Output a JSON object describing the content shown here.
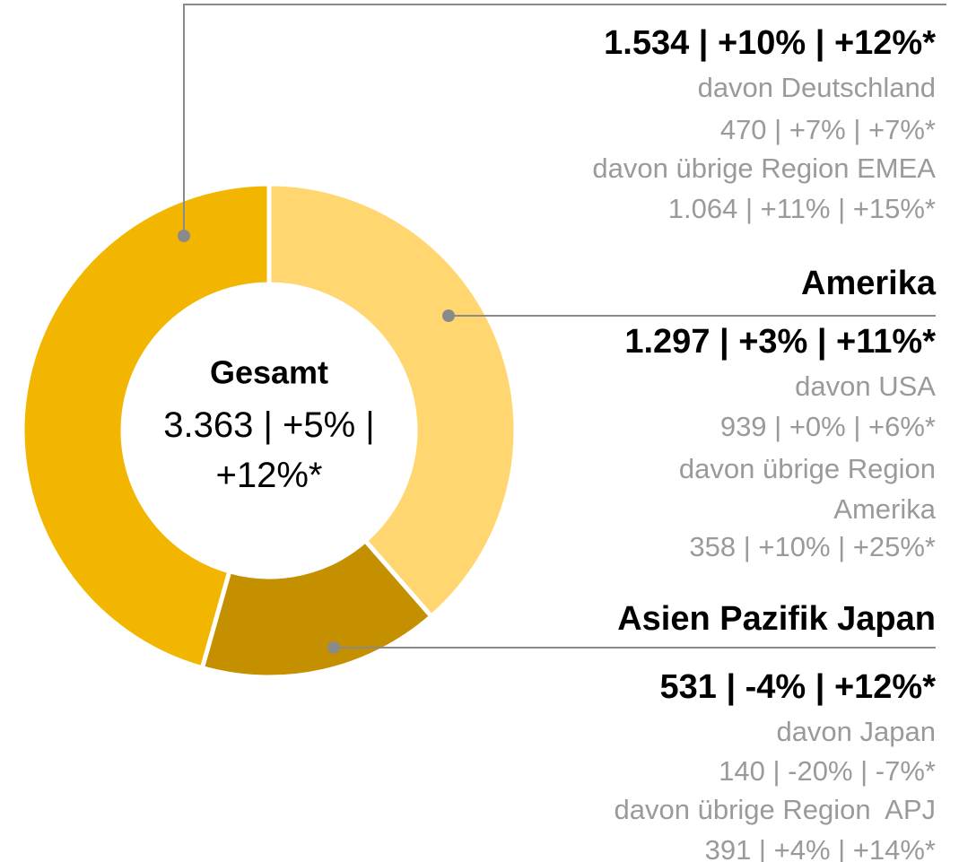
{
  "chart_data": {
    "type": "donut",
    "categories": [
      "Amerika",
      "Asien Pazifik Japan",
      null
    ],
    "values": [
      1297,
      531,
      1534
    ],
    "value_labels": [
      "1.297 | +3% | +11%*",
      "531 | -4% | +12%*",
      "1.534 | +10% | +12%*"
    ],
    "colors": [
      "#ffd670",
      "#c49000",
      "#f2b600"
    ],
    "details": [
      [
        "davon USA",
        "939 | +0% | +6%*",
        "davon übrige Region",
        "Amerika",
        "358 | +10% | +25%*"
      ],
      [
        "davon Japan",
        "140 | -20% | -7%*",
        "davon übrige Region  APJ",
        "391 | +4% | +14%*"
      ],
      [
        "davon Deutschland",
        "470 | +7% | +7%*",
        "davon übrige Region EMEA",
        "1.064 | +11% | +15%*"
      ]
    ],
    "center_title": "Gesamt",
    "center_label": "3.363 | +5% | +12%*"
  }
}
